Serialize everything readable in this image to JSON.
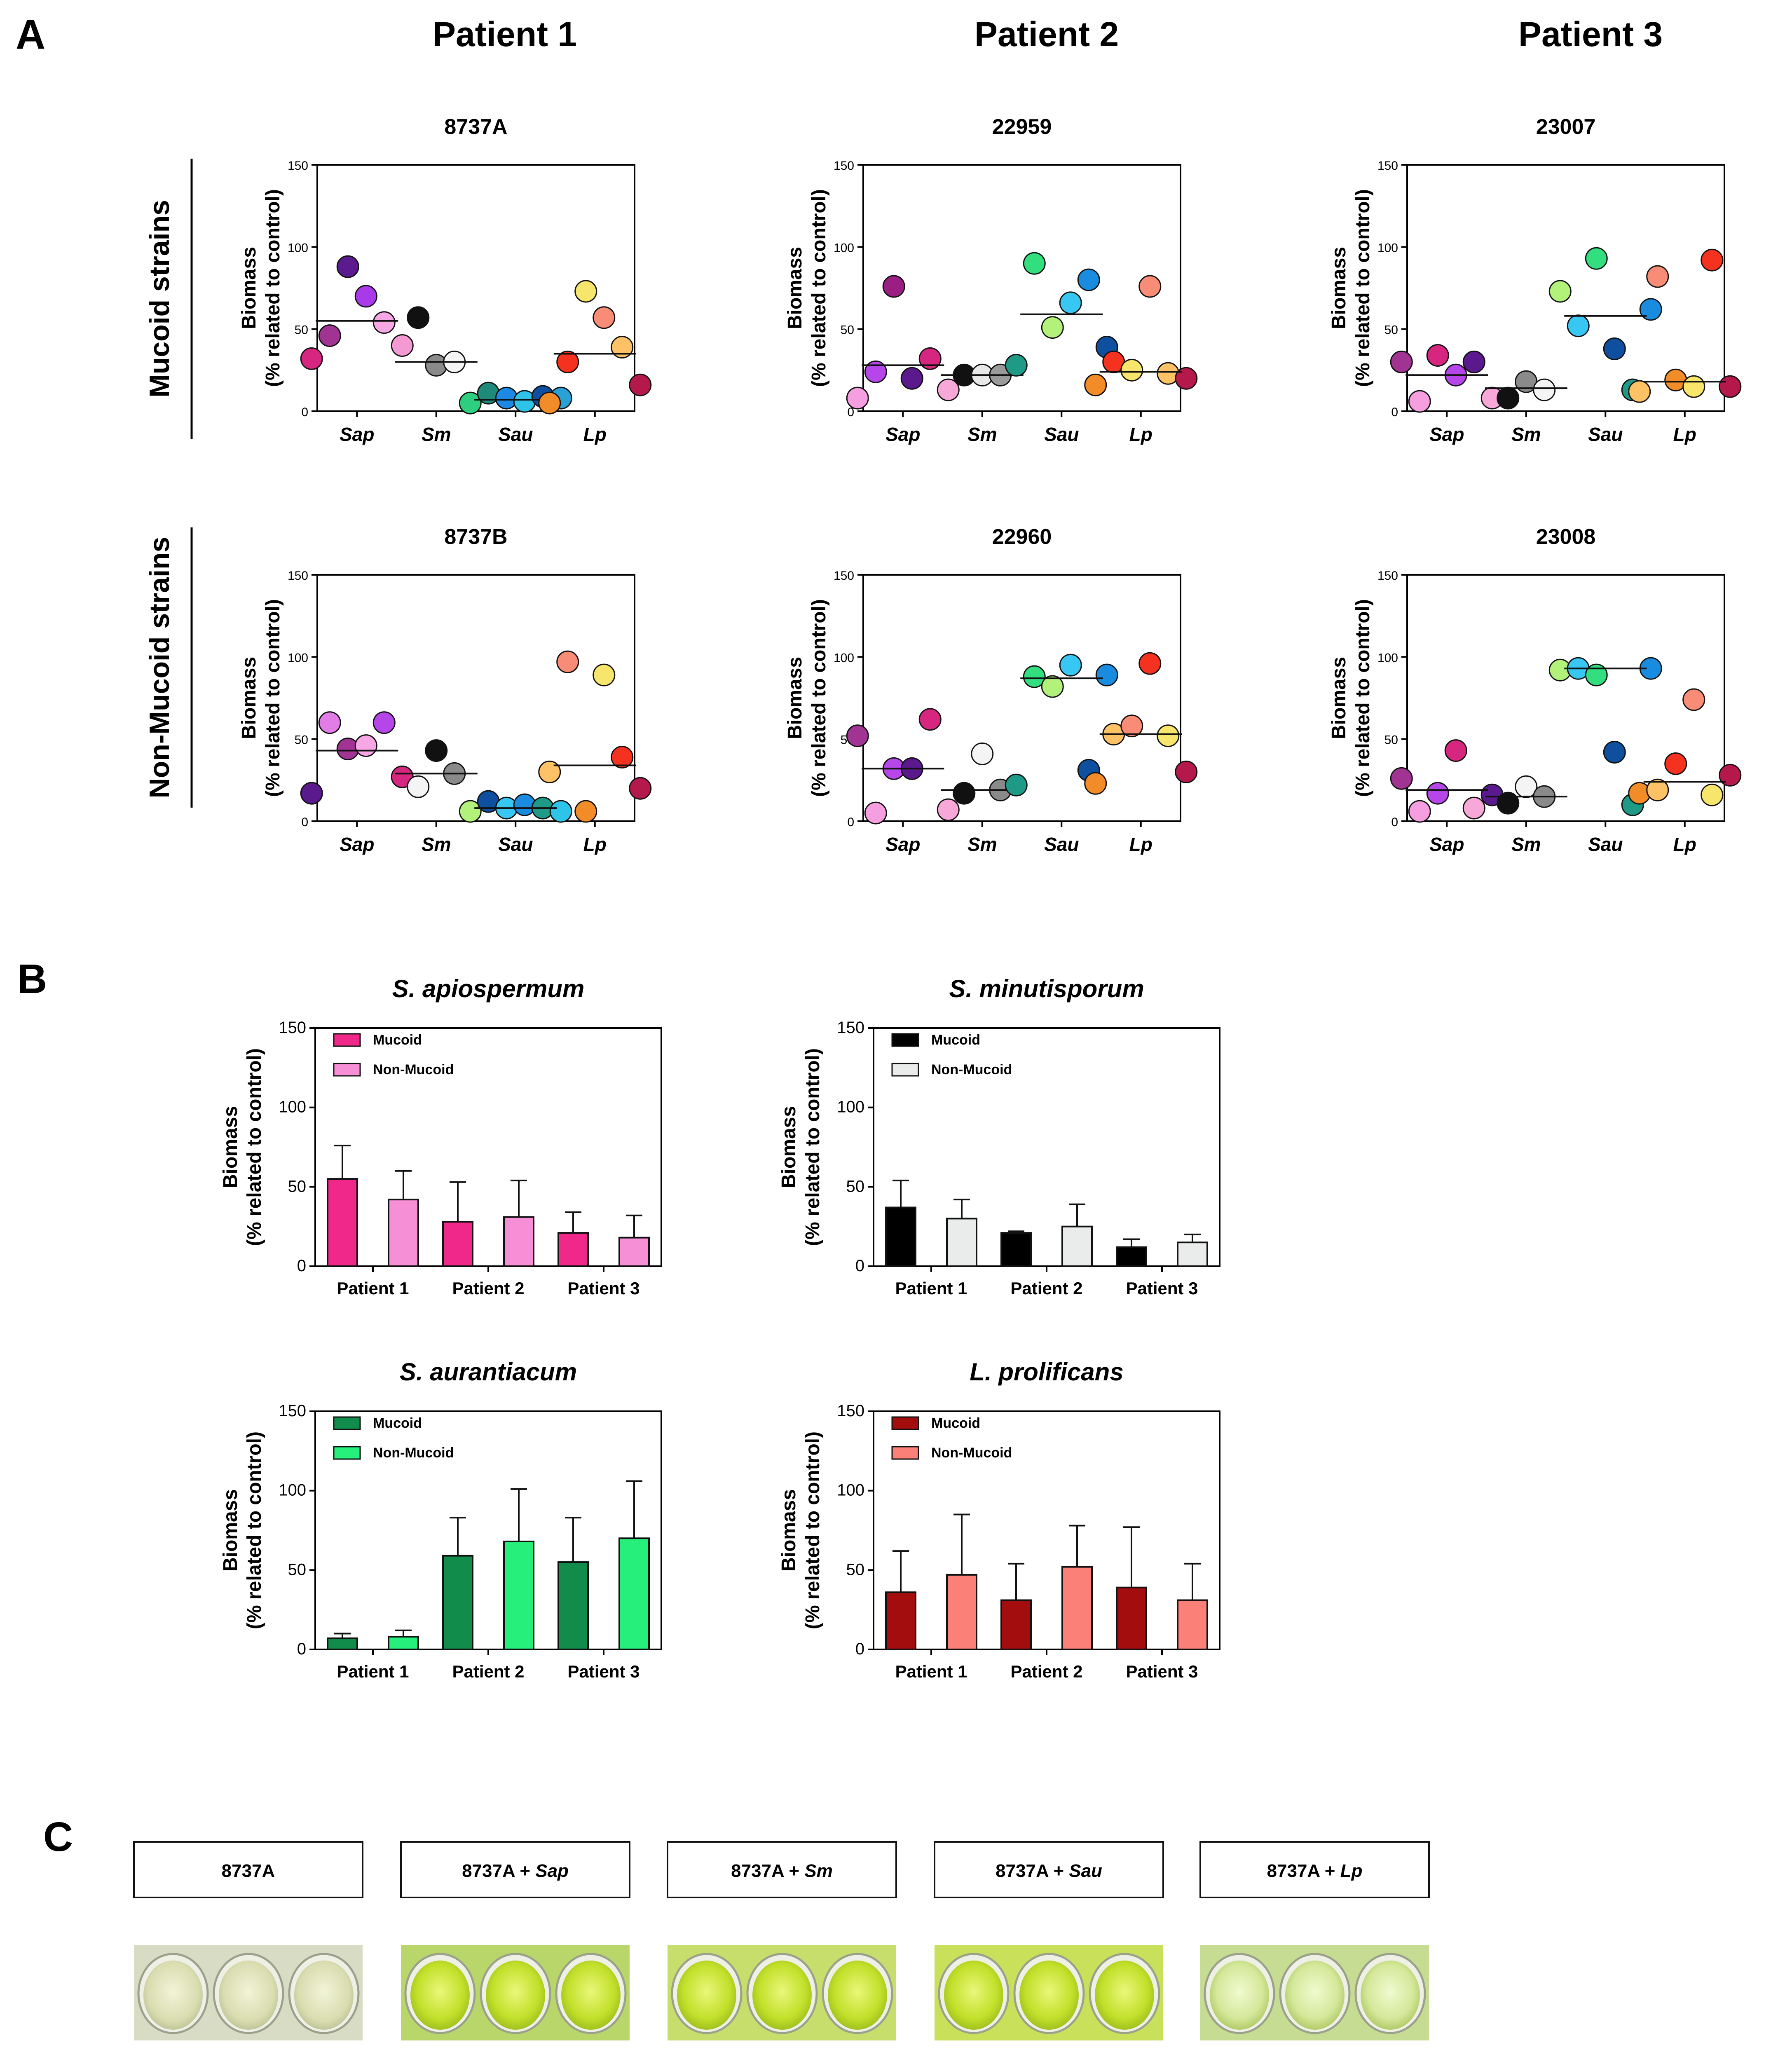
{
  "panel_labels": {
    "a": "A",
    "b": "B",
    "c": "C"
  },
  "patient_headers": [
    "Patient 1",
    "Patient 2",
    "Patient 3"
  ],
  "row_labels": {
    "mucoid": "Mucoid strains",
    "non_mucoid": "Non-Mucoid strains"
  },
  "y_axis_label": {
    "line1": "Biomass",
    "line2": "(% related to control)"
  },
  "chart_data": [
    {
      "id": "A1",
      "type": "scatter",
      "title": "8737A",
      "ylim": [
        0,
        150
      ],
      "yticks": [
        0,
        50,
        100,
        150
      ],
      "categories": [
        "Sap",
        "Sm",
        "Sau",
        "Lp"
      ],
      "groups": [
        {
          "median": 55,
          "points": [
            {
              "v": 32,
              "c": "#d6267f"
            },
            {
              "v": 46,
              "c": "#a13493"
            },
            {
              "v": 88,
              "c": "#5b1a8e"
            },
            {
              "v": 70,
              "c": "#a93ae9"
            },
            {
              "v": 54,
              "c": "#f7a8e4"
            },
            {
              "v": 40,
              "c": "#f49ad3"
            }
          ]
        },
        {
          "median": 30,
          "points": [
            {
              "v": 57,
              "c": "#111111"
            },
            {
              "v": 28,
              "c": "#8a8a8a"
            },
            {
              "v": 30,
              "c": "#f4f4f4"
            }
          ]
        },
        {
          "median": 7,
          "points": [
            {
              "v": 5,
              "c": "#2dce7d"
            },
            {
              "v": 11,
              "c": "#1f8a7a"
            },
            {
              "v": 8,
              "c": "#1e88e5"
            },
            {
              "v": 6,
              "c": "#2ec4e9"
            },
            {
              "v": 9,
              "c": "#0e4fa0"
            },
            {
              "v": 8,
              "c": "#2aa1d4"
            }
          ]
        },
        {
          "median": 35,
          "points": [
            {
              "v": 5,
              "c": "#f28c28"
            },
            {
              "v": 30,
              "c": "#f5321f"
            },
            {
              "v": 73,
              "c": "#f8e56c"
            },
            {
              "v": 57,
              "c": "#f98c77"
            },
            {
              "v": 39,
              "c": "#fcc265"
            },
            {
              "v": 16,
              "c": "#b5194b"
            }
          ]
        }
      ]
    },
    {
      "id": "A2",
      "type": "scatter",
      "title": "22959",
      "ylim": [
        0,
        150
      ],
      "yticks": [
        0,
        50,
        100,
        150
      ],
      "categories": [
        "Sap",
        "Sm",
        "Sau",
        "Lp"
      ],
      "groups": [
        {
          "median": 28,
          "points": [
            {
              "v": 8,
              "c": "#f59fe0"
            },
            {
              "v": 24,
              "c": "#b646ea"
            },
            {
              "v": 76,
              "c": "#9b1f83"
            },
            {
              "v": 20,
              "c": "#5a1a8e"
            },
            {
              "v": 32,
              "c": "#d6267f"
            },
            {
              "v": 13,
              "c": "#f7a8d8"
            }
          ]
        },
        {
          "median": 22,
          "points": [
            {
              "v": 22,
              "c": "#111111"
            },
            {
              "v": 22,
              "c": "#e8e8e8"
            },
            {
              "v": 22,
              "c": "#9a9a9a"
            }
          ]
        },
        {
          "median": 59,
          "points": [
            {
              "v": 28,
              "c": "#1f9a86"
            },
            {
              "v": 90,
              "c": "#32de7d"
            },
            {
              "v": 51,
              "c": "#b2f27a"
            },
            {
              "v": 66,
              "c": "#38c6f2"
            },
            {
              "v": 80,
              "c": "#1a8ce0"
            },
            {
              "v": 39,
              "c": "#0e4fa0"
            }
          ]
        },
        {
          "median": 24,
          "points": [
            {
              "v": 16,
              "c": "#f28c28"
            },
            {
              "v": 30,
              "c": "#f5321f"
            },
            {
              "v": 25,
              "c": "#f8e56c"
            },
            {
              "v": 76,
              "c": "#f98c77"
            },
            {
              "v": 23,
              "c": "#fcc265"
            },
            {
              "v": 20,
              "c": "#b5194b"
            }
          ]
        }
      ]
    },
    {
      "id": "A3",
      "type": "scatter",
      "title": "23007",
      "ylim": [
        0,
        150
      ],
      "yticks": [
        0,
        50,
        100,
        150
      ],
      "categories": [
        "Sap",
        "Sm",
        "Sau",
        "Lp"
      ],
      "groups": [
        {
          "median": 22,
          "points": [
            {
              "v": 30,
              "c": "#a13493"
            },
            {
              "v": 6,
              "c": "#f59fe0"
            },
            {
              "v": 34,
              "c": "#d6267f"
            },
            {
              "v": 22,
              "c": "#b646ea"
            },
            {
              "v": 30,
              "c": "#5a1a8e"
            },
            {
              "v": 8,
              "c": "#f7a8d8"
            }
          ]
        },
        {
          "median": 14,
          "points": [
            {
              "v": 8,
              "c": "#111111"
            },
            {
              "v": 18,
              "c": "#8a8a8a"
            },
            {
              "v": 13,
              "c": "#f4f4f4"
            }
          ]
        },
        {
          "median": 58,
          "points": [
            {
              "v": 73,
              "c": "#b2f27a"
            },
            {
              "v": 52,
              "c": "#38c6f2"
            },
            {
              "v": 93,
              "c": "#32de7d"
            },
            {
              "v": 38,
              "c": "#0e4fa0"
            },
            {
              "v": 13,
              "c": "#1f9a86"
            },
            {
              "v": 62,
              "c": "#1a8ce0"
            }
          ]
        },
        {
          "median": 18,
          "points": [
            {
              "v": 12,
              "c": "#fcc265"
            },
            {
              "v": 82,
              "c": "#f98c77"
            },
            {
              "v": 19,
              "c": "#f28c28"
            },
            {
              "v": 15,
              "c": "#f8e56c"
            },
            {
              "v": 92,
              "c": "#f5321f"
            },
            {
              "v": 15,
              "c": "#b5194b"
            }
          ]
        }
      ]
    },
    {
      "id": "A4",
      "type": "scatter",
      "title": "8737B",
      "ylim": [
        0,
        150
      ],
      "yticks": [
        0,
        50,
        100,
        150
      ],
      "categories": [
        "Sap",
        "Sm",
        "Sau",
        "Lp"
      ],
      "groups": [
        {
          "median": 43,
          "points": [
            {
              "v": 17,
              "c": "#5a1a8e"
            },
            {
              "v": 60,
              "c": "#e27de8"
            },
            {
              "v": 44,
              "c": "#a13493"
            },
            {
              "v": 46,
              "c": "#f7a8e4"
            },
            {
              "v": 60,
              "c": "#b646ea"
            },
            {
              "v": 27,
              "c": "#d6267f"
            }
          ]
        },
        {
          "median": 29,
          "points": [
            {
              "v": 21,
              "c": "#f4f4f4"
            },
            {
              "v": 43,
              "c": "#111111"
            },
            {
              "v": 29,
              "c": "#8a8a8a"
            }
          ]
        },
        {
          "median": 8,
          "points": [
            {
              "v": 6,
              "c": "#b2f27a"
            },
            {
              "v": 12,
              "c": "#0e4fa0"
            },
            {
              "v": 8,
              "c": "#38c6f2"
            },
            {
              "v": 10,
              "c": "#1a8ce0"
            },
            {
              "v": 8,
              "c": "#1f9a86"
            },
            {
              "v": 6,
              "c": "#2ec4e9"
            }
          ]
        },
        {
          "median": 34,
          "points": [
            {
              "v": 30,
              "c": "#fcc265"
            },
            {
              "v": 97,
              "c": "#f98c77"
            },
            {
              "v": 6,
              "c": "#f28c28"
            },
            {
              "v": 89,
              "c": "#f8e56c"
            },
            {
              "v": 39,
              "c": "#f5321f"
            },
            {
              "v": 20,
              "c": "#b5194b"
            }
          ]
        }
      ]
    },
    {
      "id": "A5",
      "type": "scatter",
      "title": "22960",
      "ylim": [
        0,
        150
      ],
      "yticks": [
        0,
        50,
        100,
        150
      ],
      "categories": [
        "Sap",
        "Sm",
        "Sau",
        "Lp"
      ],
      "groups": [
        {
          "median": 32,
          "points": [
            {
              "v": 52,
              "c": "#a13493"
            },
            {
              "v": 5,
              "c": "#f59fe0"
            },
            {
              "v": 32,
              "c": "#b646ea"
            },
            {
              "v": 32,
              "c": "#5a1a8e"
            },
            {
              "v": 62,
              "c": "#d6267f"
            },
            {
              "v": 7,
              "c": "#f7a8d8"
            }
          ]
        },
        {
          "median": 19,
          "points": [
            {
              "v": 17,
              "c": "#111111"
            },
            {
              "v": 41,
              "c": "#f4f4f4"
            },
            {
              "v": 19,
              "c": "#8a8a8a"
            }
          ]
        },
        {
          "median": 87,
          "points": [
            {
              "v": 22,
              "c": "#1f9a86"
            },
            {
              "v": 88,
              "c": "#32de7d"
            },
            {
              "v": 82,
              "c": "#b2f27a"
            },
            {
              "v": 95,
              "c": "#38c6f2"
            },
            {
              "v": 31,
              "c": "#0e4fa0"
            },
            {
              "v": 89,
              "c": "#1a8ce0"
            }
          ]
        },
        {
          "median": 53,
          "points": [
            {
              "v": 23,
              "c": "#f28c28"
            },
            {
              "v": 53,
              "c": "#fcc265"
            },
            {
              "v": 58,
              "c": "#f98c77"
            },
            {
              "v": 96,
              "c": "#f5321f"
            },
            {
              "v": 52,
              "c": "#f8e56c"
            },
            {
              "v": 30,
              "c": "#b5194b"
            }
          ]
        }
      ]
    },
    {
      "id": "A6",
      "type": "scatter",
      "title": "23008",
      "ylim": [
        0,
        150
      ],
      "yticks": [
        0,
        50,
        100,
        150
      ],
      "categories": [
        "Sap",
        "Sm",
        "Sau",
        "Lp"
      ],
      "groups": [
        {
          "median": 19,
          "points": [
            {
              "v": 26,
              "c": "#a13493"
            },
            {
              "v": 6,
              "c": "#f59fe0"
            },
            {
              "v": 17,
              "c": "#b646ea"
            },
            {
              "v": 43,
              "c": "#d6267f"
            },
            {
              "v": 8,
              "c": "#f7a8d8"
            },
            {
              "v": 16,
              "c": "#5a1a8e"
            }
          ]
        },
        {
          "median": 15,
          "points": [
            {
              "v": 11,
              "c": "#111111"
            },
            {
              "v": 21,
              "c": "#f4f4f4"
            },
            {
              "v": 15,
              "c": "#8a8a8a"
            }
          ]
        },
        {
          "median": 93,
          "points": [
            {
              "v": 92,
              "c": "#b2f27a"
            },
            {
              "v": 93,
              "c": "#38c6f2"
            },
            {
              "v": 89,
              "c": "#32de7d"
            },
            {
              "v": 42,
              "c": "#0e4fa0"
            },
            {
              "v": 10,
              "c": "#1f9a86"
            },
            {
              "v": 93,
              "c": "#1a8ce0"
            }
          ]
        },
        {
          "median": 24,
          "points": [
            {
              "v": 17,
              "c": "#f28c28"
            },
            {
              "v": 19,
              "c": "#fcc265"
            },
            {
              "v": 35,
              "c": "#f5321f"
            },
            {
              "v": 74,
              "c": "#f98c77"
            },
            {
              "v": 16,
              "c": "#f8e56c"
            },
            {
              "v": 28,
              "c": "#b5194b"
            }
          ]
        }
      ]
    },
    {
      "id": "B1",
      "type": "bar",
      "title": "S. apiospermum",
      "ylim": [
        0,
        150
      ],
      "yticks": [
        0,
        50,
        100,
        150
      ],
      "categories": [
        "Patient 1",
        "Patient 2",
        "Patient 3"
      ],
      "series": [
        {
          "name": "Mucoid",
          "color": "#f0288a",
          "values": [
            55,
            28,
            21
          ],
          "errors": [
            21,
            25,
            13
          ]
        },
        {
          "name": "Non-Mucoid",
          "color": "#f78fd6",
          "values": [
            42,
            31,
            18
          ],
          "errors": [
            18,
            23,
            14
          ]
        }
      ]
    },
    {
      "id": "B2",
      "type": "bar",
      "title": "S. minutisporum",
      "ylim": [
        0,
        150
      ],
      "yticks": [
        0,
        50,
        100,
        150
      ],
      "categories": [
        "Patient 1",
        "Patient 2",
        "Patient 3"
      ],
      "series": [
        {
          "name": "Mucoid",
          "color": "#000000",
          "values": [
            37,
            21,
            12
          ],
          "errors": [
            17,
            1,
            5
          ]
        },
        {
          "name": "Non-Mucoid",
          "color": "#eaeceb",
          "values": [
            30,
            25,
            15
          ],
          "errors": [
            12,
            14,
            5
          ]
        }
      ]
    },
    {
      "id": "B3",
      "type": "bar",
      "title": "S. aurantiacum",
      "ylim": [
        0,
        150
      ],
      "yticks": [
        0,
        50,
        100,
        150
      ],
      "categories": [
        "Patient 1",
        "Patient 2",
        "Patient 3"
      ],
      "series": [
        {
          "name": "Mucoid",
          "color": "#118c4a",
          "values": [
            7,
            59,
            55
          ],
          "errors": [
            3,
            24,
            28
          ]
        },
        {
          "name": "Non-Mucoid",
          "color": "#26ef7c",
          "values": [
            8,
            68,
            70
          ],
          "errors": [
            4,
            33,
            36
          ]
        }
      ]
    },
    {
      "id": "B4",
      "type": "bar",
      "title": "L. prolificans",
      "ylim": [
        0,
        150
      ],
      "yticks": [
        0,
        50,
        100,
        150
      ],
      "categories": [
        "Patient 1",
        "Patient 2",
        "Patient 3"
      ],
      "series": [
        {
          "name": "Mucoid",
          "color": "#a30d0d",
          "values": [
            36,
            31,
            39
          ],
          "errors": [
            26,
            23,
            38
          ]
        },
        {
          "name": "Non-Mucoid",
          "color": "#fa8078",
          "values": [
            47,
            52,
            31
          ],
          "errors": [
            38,
            26,
            23
          ]
        }
      ]
    }
  ],
  "panel_c": [
    {
      "strain": "8737A",
      "partner": ""
    },
    {
      "strain": "8737A + ",
      "partner": "Sap"
    },
    {
      "strain": "8737A + ",
      "partner": "Sm"
    },
    {
      "strain": "8737A + ",
      "partner": "Sau"
    },
    {
      "strain": "8737A + ",
      "partner": "Lp"
    }
  ]
}
